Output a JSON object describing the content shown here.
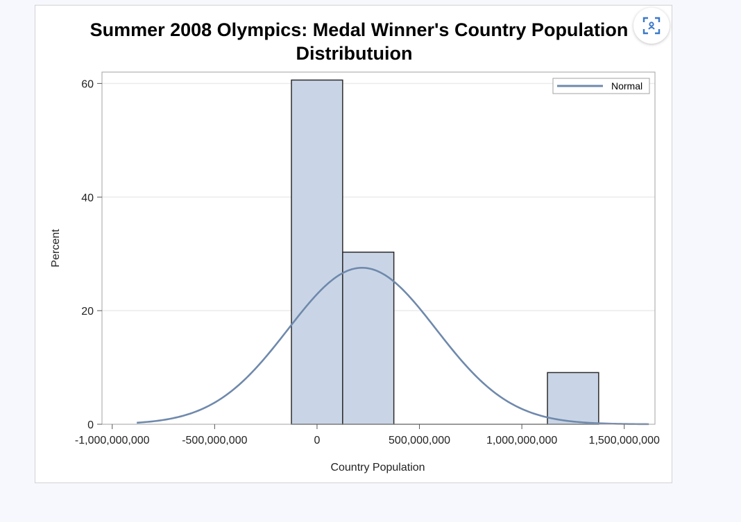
{
  "chart_data": {
    "type": "bar",
    "title_lines": [
      "Summer 2008 Olympics:  Medal Winner's Country Population",
      "Distributuion"
    ],
    "xlabel": "Country Population",
    "ylabel": "Percent",
    "xlim": [
      -1050000000,
      1650000000
    ],
    "ylim": [
      0,
      62
    ],
    "x_ticks": [
      -1000000000,
      -500000000,
      0,
      500000000,
      1000000000,
      1500000000
    ],
    "x_tick_labels": [
      "-1,000,000,000",
      "-500,000,000",
      "0",
      "500,000,000",
      "1,000,000,000",
      "1,500,000,000"
    ],
    "y_ticks": [
      0,
      20,
      40,
      60
    ],
    "y_tick_labels": [
      "0",
      "20",
      "40",
      "60"
    ],
    "bin_width": 250000000,
    "bins": [
      {
        "center": 0,
        "value": 60.6
      },
      {
        "center": 250000000,
        "value": 30.3
      },
      {
        "center": 500000000,
        "value": 0
      },
      {
        "center": 750000000,
        "value": 0
      },
      {
        "center": 1000000000,
        "value": 0
      },
      {
        "center": 1250000000,
        "value": 9.1
      }
    ],
    "series": [
      {
        "name": "Normal",
        "type": "normal_curve",
        "mean": 220000000,
        "sd": 362000000,
        "x_range": [
          -880000000,
          1620000000
        ]
      }
    ],
    "legend": {
      "position": "top-right",
      "entries": [
        "Normal"
      ]
    },
    "grid": true,
    "colors": {
      "bar_fill": "#c9d5e6",
      "bar_stroke": "#2b2b2b",
      "curve": "#6f89ac",
      "grid": "#ebebeb",
      "frame": "#a0a0a0"
    }
  },
  "toolbar": {
    "focus_icon": "focus-mode-icon"
  }
}
